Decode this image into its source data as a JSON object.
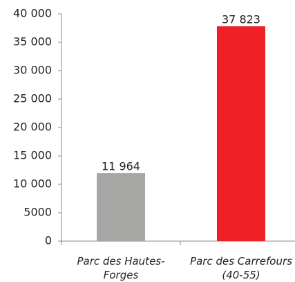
{
  "chart_data": {
    "type": "bar",
    "categories": [
      "Parc des Hautes-Forges",
      "Parc des Carrefours (40-55)"
    ],
    "values": [
      11964,
      37823
    ],
    "value_labels": [
      "11 964",
      "37 823"
    ],
    "colors": [
      "#a6a6a4",
      "#ee2026"
    ],
    "ylim": [
      0,
      40000
    ],
    "yticks": [
      0,
      5000,
      {
        "value": 10000,
        "label": "10 000"
      },
      {
        "value": 15000,
        "label": "15 000"
      },
      {
        "value": 20000,
        "label": "20 000"
      },
      {
        "value": 25000,
        "label": "25 000"
      },
      {
        "value": 30000,
        "label": "30 000"
      },
      {
        "value": 35000,
        "label": "35 000"
      },
      {
        "value": 40000,
        "label": "40 000"
      }
    ]
  }
}
